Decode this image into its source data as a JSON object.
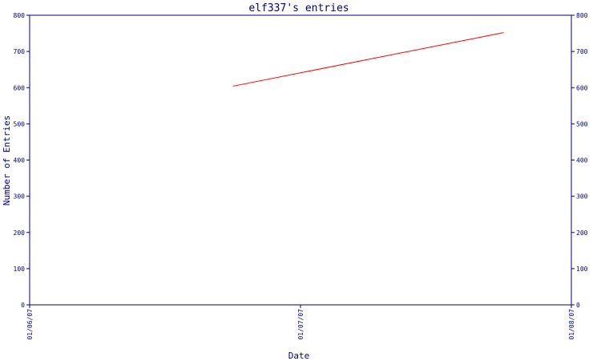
{
  "chart_data": {
    "type": "line",
    "title": "elf337's entries",
    "xlabel": "Date",
    "ylabel": "Number of Entries",
    "x_ticks": [
      "01/06/07",
      "01/07/07",
      "01/08/07"
    ],
    "ylim": [
      0,
      800
    ],
    "y_ticks": [
      0,
      100,
      200,
      300,
      400,
      500,
      600,
      700,
      800
    ],
    "grid": false,
    "series": [
      {
        "color": "#ff0000",
        "x": [
          "2007-01-06 18:00",
          "2007-01-07 18:00"
        ],
        "values": [
          604,
          752
        ]
      }
    ]
  }
}
